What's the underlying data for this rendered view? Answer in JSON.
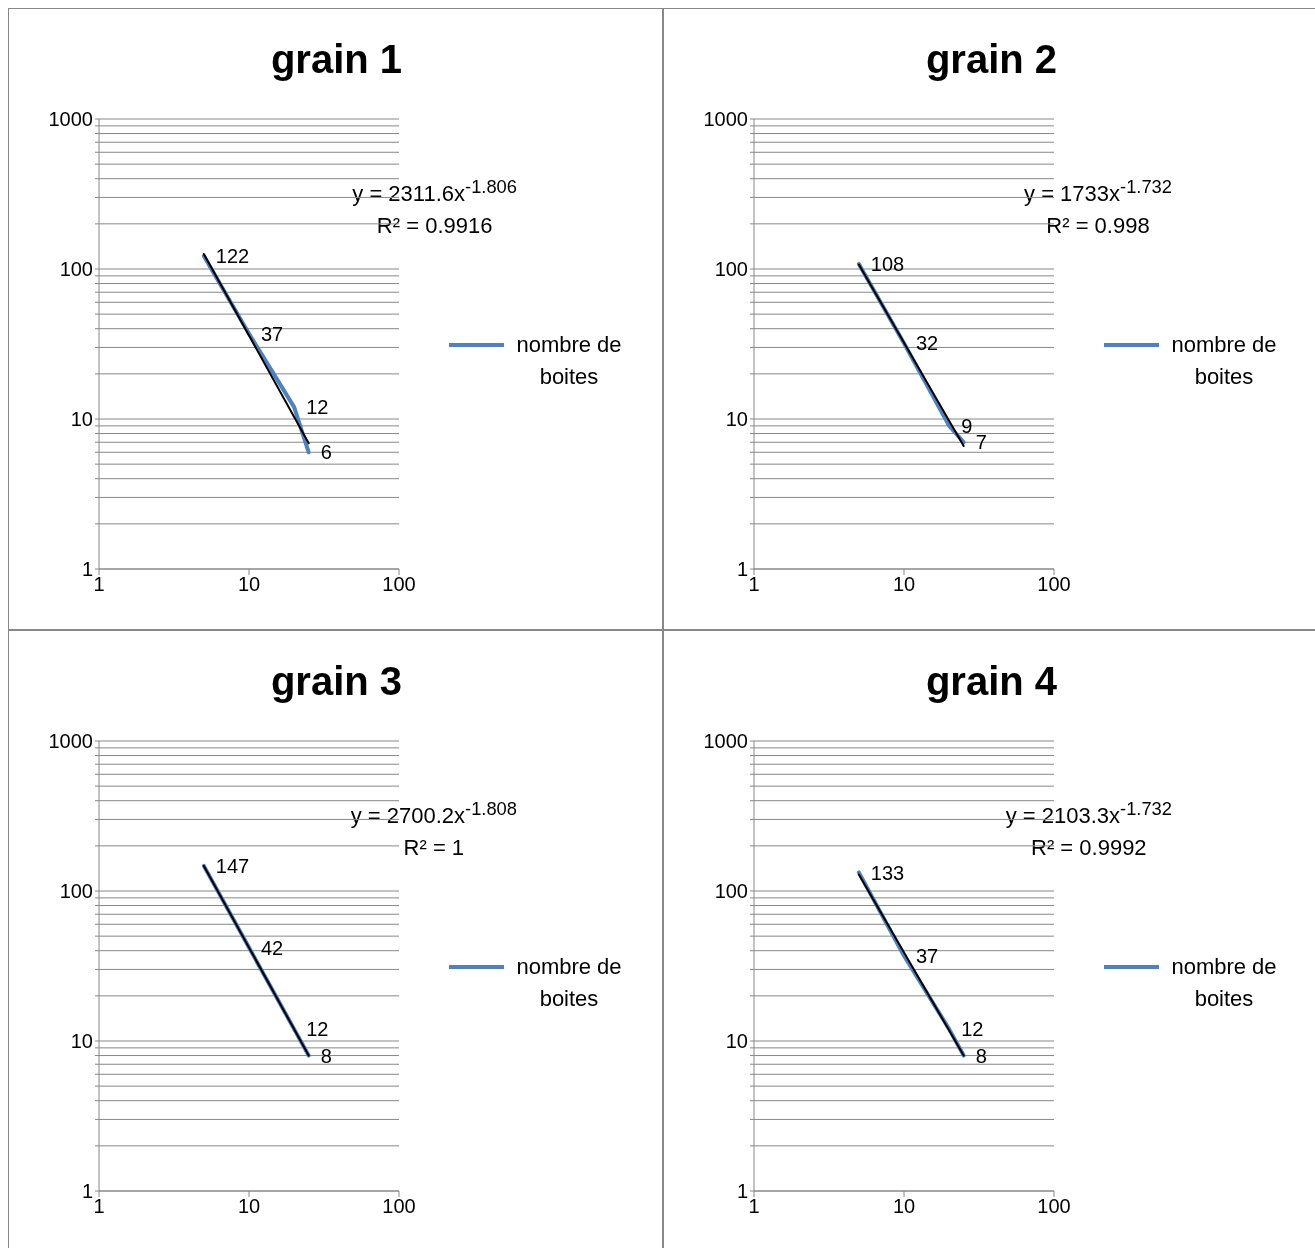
{
  "chart_data": [
    {
      "type": "line",
      "title": "grain 1",
      "x": [
        5,
        10,
        20,
        25
      ],
      "xlim": [
        1,
        100
      ],
      "xticks": [
        1,
        10,
        100
      ],
      "ylim": [
        1,
        1000
      ],
      "yticks": [
        1,
        {
          "value": 2,
          "label": null
        },
        {
          "value": 3,
          "label": null
        },
        {
          "value": 4,
          "label": null
        },
        {
          "value": 5,
          "label": null
        },
        {
          "value": 6,
          "label": null
        },
        {
          "value": 7,
          "label": null
        },
        {
          "value": 8,
          "label": null
        },
        {
          "value": 9,
          "label": null
        },
        10,
        {
          "value": 20,
          "label": null
        },
        {
          "value": 30,
          "label": null
        },
        {
          "value": 40,
          "label": null
        },
        {
          "value": 50,
          "label": null
        },
        {
          "value": 60,
          "label": null
        },
        {
          "value": 70,
          "label": null
        },
        {
          "value": 80,
          "label": null
        },
        {
          "value": 90,
          "label": null
        },
        100,
        {
          "value": 200,
          "label": null
        },
        {
          "value": 300,
          "label": null
        },
        {
          "value": 400,
          "label": null
        },
        {
          "value": 500,
          "label": null
        },
        {
          "value": 600,
          "label": null
        },
        {
          "value": 700,
          "label": null
        },
        {
          "value": 800,
          "label": null
        },
        {
          "value": 900,
          "label": null
        },
        1000
      ],
      "log": "xy",
      "grid": "y",
      "legend": "right",
      "marker": "none",
      "annotations": [
        "y = 2311.6x$^{-1.806}$",
        "R² = 0.9916"
      ],
      "series": [
        {
          "name": "nombre de boites",
          "color": "#4f81bd",
          "values": [
            122,
            37,
            12,
            6
          ],
          "value_labels": [
            "122",
            "37",
            "12",
            "6"
          ]
        },
        {
          "type": "line",
          "color": "#000000",
          "values": [
            126,
            null,
            null,
            6.9
          ]
        }
      ]
    },
    {
      "type": "line",
      "title": "grain 2",
      "x": [
        5,
        10,
        20,
        25
      ],
      "xlim": [
        1,
        100
      ],
      "xticks": [
        1,
        10,
        100
      ],
      "ylim": [
        1,
        1000
      ],
      "yticks": [
        1,
        {
          "value": 2,
          "label": null
        },
        {
          "value": 3,
          "label": null
        },
        {
          "value": 4,
          "label": null
        },
        {
          "value": 5,
          "label": null
        },
        {
          "value": 6,
          "label": null
        },
        {
          "value": 7,
          "label": null
        },
        {
          "value": 8,
          "label": null
        },
        {
          "value": 9,
          "label": null
        },
        10,
        {
          "value": 20,
          "label": null
        },
        {
          "value": 30,
          "label": null
        },
        {
          "value": 40,
          "label": null
        },
        {
          "value": 50,
          "label": null
        },
        {
          "value": 60,
          "label": null
        },
        {
          "value": 70,
          "label": null
        },
        {
          "value": 80,
          "label": null
        },
        {
          "value": 90,
          "label": null
        },
        100,
        {
          "value": 200,
          "label": null
        },
        {
          "value": 300,
          "label": null
        },
        {
          "value": 400,
          "label": null
        },
        {
          "value": 500,
          "label": null
        },
        {
          "value": 600,
          "label": null
        },
        {
          "value": 700,
          "label": null
        },
        {
          "value": 800,
          "label": null
        },
        {
          "value": 900,
          "label": null
        },
        1000
      ],
      "log": "xy",
      "grid": "y",
      "legend": "right",
      "marker": "none",
      "annotations": [
        "y = 1733x$^{-1.732}$",
        "R² = 0.998"
      ],
      "series": [
        {
          "name": "nombre de boites",
          "color": "#4f81bd",
          "values": [
            108,
            32,
            9,
            7
          ],
          "value_labels": [
            "108",
            "32",
            "9",
            "7"
          ]
        },
        {
          "type": "line",
          "color": "#000000",
          "values": [
            107,
            null,
            null,
            6.6
          ]
        }
      ]
    },
    {
      "type": "line",
      "title": "grain 3",
      "x": [
        5,
        10,
        20,
        25
      ],
      "xlim": [
        1,
        100
      ],
      "xticks": [
        1,
        10,
        100
      ],
      "ylim": [
        1,
        1000
      ],
      "yticks": [
        1,
        {
          "value": 2,
          "label": null
        },
        {
          "value": 3,
          "label": null
        },
        {
          "value": 4,
          "label": null
        },
        {
          "value": 5,
          "label": null
        },
        {
          "value": 6,
          "label": null
        },
        {
          "value": 7,
          "label": null
        },
        {
          "value": 8,
          "label": null
        },
        {
          "value": 9,
          "label": null
        },
        10,
        {
          "value": 20,
          "label": null
        },
        {
          "value": 30,
          "label": null
        },
        {
          "value": 40,
          "label": null
        },
        {
          "value": 50,
          "label": null
        },
        {
          "value": 60,
          "label": null
        },
        {
          "value": 70,
          "label": null
        },
        {
          "value": 80,
          "label": null
        },
        {
          "value": 90,
          "label": null
        },
        100,
        {
          "value": 200,
          "label": null
        },
        {
          "value": 300,
          "label": null
        },
        {
          "value": 400,
          "label": null
        },
        {
          "value": 500,
          "label": null
        },
        {
          "value": 600,
          "label": null
        },
        {
          "value": 700,
          "label": null
        },
        {
          "value": 800,
          "label": null
        },
        {
          "value": 900,
          "label": null
        },
        1000
      ],
      "log": "xy",
      "grid": "y",
      "legend": "right",
      "marker": "none",
      "annotations": [
        "y = 2700.2x$^{-1.808}$",
        "R² = 1"
      ],
      "series": [
        {
          "name": "nombre de boites",
          "color": "#4f81bd",
          "values": [
            147,
            42,
            12,
            8
          ],
          "value_labels": [
            "147",
            "42",
            "12",
            "8"
          ]
        },
        {
          "type": "line",
          "color": "#000000",
          "values": [
            147,
            null,
            null,
            8
          ]
        }
      ]
    },
    {
      "type": "line",
      "title": "grain 4",
      "x": [
        5,
        10,
        20,
        25
      ],
      "xlim": [
        1,
        100
      ],
      "xticks": [
        1,
        10,
        100
      ],
      "ylim": [
        1,
        1000
      ],
      "yticks": [
        1,
        {
          "value": 2,
          "label": null
        },
        {
          "value": 3,
          "label": null
        },
        {
          "value": 4,
          "label": null
        },
        {
          "value": 5,
          "label": null
        },
        {
          "value": 6,
          "label": null
        },
        {
          "value": 7,
          "label": null
        },
        {
          "value": 8,
          "label": null
        },
        {
          "value": 9,
          "label": null
        },
        10,
        {
          "value": 20,
          "label": null
        },
        {
          "value": 30,
          "label": null
        },
        {
          "value": 40,
          "label": null
        },
        {
          "value": 50,
          "label": null
        },
        {
          "value": 60,
          "label": null
        },
        {
          "value": 70,
          "label": null
        },
        {
          "value": 80,
          "label": null
        },
        {
          "value": 90,
          "label": null
        },
        100,
        {
          "value": 200,
          "label": null
        },
        {
          "value": 300,
          "label": null
        },
        {
          "value": 400,
          "label": null
        },
        {
          "value": 500,
          "label": null
        },
        {
          "value": 600,
          "label": null
        },
        {
          "value": 700,
          "label": null
        },
        {
          "value": 800,
          "label": null
        },
        {
          "value": 900,
          "label": null
        },
        1000
      ],
      "log": "xy",
      "grid": "y",
      "legend": "right",
      "marker": "none",
      "annotations": [
        "y = 2103.3x$^{-1.732}$",
        "R² = 0.9992"
      ],
      "series": [
        {
          "name": "nombre de boites",
          "color": "#4f81bd",
          "values": [
            133,
            37,
            12,
            8
          ],
          "value_labels": [
            "133",
            "37",
            "12",
            "8"
          ]
        },
        {
          "type": "line",
          "color": "#000000",
          "values": [
            129,
            null,
            null,
            8
          ]
        }
      ]
    }
  ]
}
